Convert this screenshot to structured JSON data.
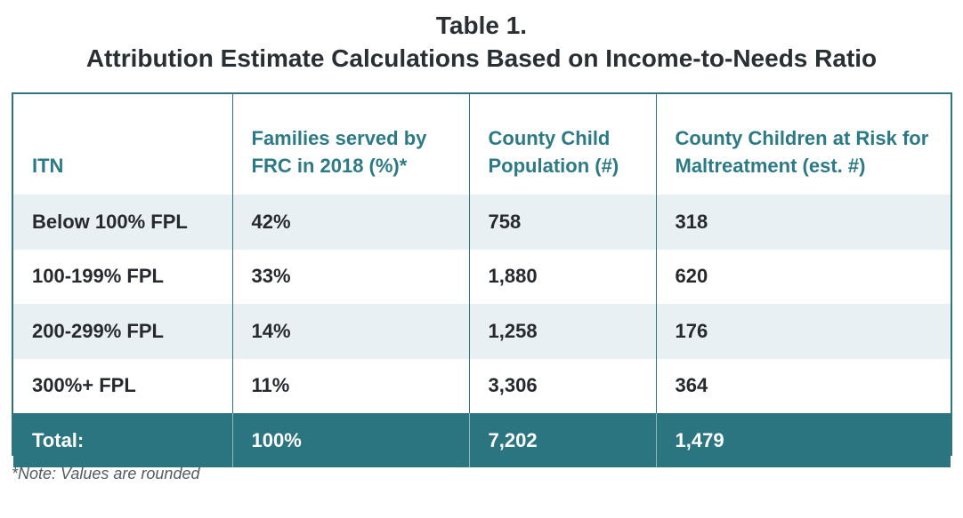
{
  "title": {
    "line1": "Table 1.",
    "line2": "Attribution Estimate Calculations Based on Income-to-Needs Ratio"
  },
  "table": {
    "headers": [
      "ITN",
      "Families served by FRC in 2018 (%)*",
      "County Child Population (#)",
      "County Children at Risk for Maltreatment (est. #)"
    ],
    "rows": [
      [
        "Below 100% FPL",
        "42%",
        "758",
        "318"
      ],
      [
        "100-199% FPL",
        "33%",
        "1,880",
        "620"
      ],
      [
        "200-299% FPL",
        "14%",
        "1,258",
        "176"
      ],
      [
        "300%+ FPL",
        "11%",
        "3,306",
        "364"
      ]
    ],
    "total": [
      "Total:",
      "100%",
      "7,202",
      "1,479"
    ]
  },
  "note": "*Note: Values are rounded",
  "colors": {
    "accent": "#2c7a86",
    "total_row_bg": "#2b7580",
    "shade_row_bg": "#e9f0f3"
  }
}
